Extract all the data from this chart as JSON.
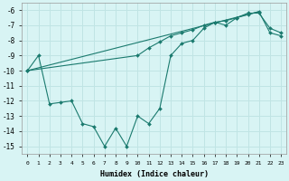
{
  "line1_x": [
    0,
    1,
    2,
    3,
    4,
    5,
    6,
    7,
    8,
    9,
    10,
    11,
    12,
    13,
    14,
    15,
    16,
    17,
    18,
    19,
    20,
    21,
    22,
    23
  ],
  "line1_y": [
    -10.0,
    -9.0,
    -12.2,
    -12.1,
    -12.0,
    -13.5,
    -13.7,
    -15.0,
    -13.8,
    -15.0,
    -13.0,
    -13.5,
    -12.5,
    -9.0,
    -8.2,
    -8.0,
    -7.2,
    -6.8,
    -7.0,
    -6.5,
    -6.2,
    -6.2,
    -7.2,
    -7.5
  ],
  "line2_x": [
    0,
    10,
    11,
    12,
    13,
    14,
    15,
    16,
    17,
    18,
    19,
    20,
    21,
    22,
    23
  ],
  "line2_y": [
    -10.0,
    -9.0,
    -8.5,
    -8.1,
    -7.7,
    -7.5,
    -7.3,
    -7.0,
    -6.8,
    -6.7,
    -6.5,
    -6.3,
    -6.1,
    -7.5,
    -7.7
  ],
  "line3_x": [
    0,
    21
  ],
  "line3_y": [
    -10.0,
    -6.1
  ],
  "color": "#1a7a6e",
  "bg_color": "#d8f4f4",
  "grid_color": "#c0e4e4",
  "xlabel": "Humidex (Indice chaleur)",
  "ylim": [
    -15.5,
    -5.5
  ],
  "xlim": [
    -0.5,
    23.5
  ],
  "yticks": [
    -6,
    -7,
    -8,
    -9,
    -10,
    -11,
    -12,
    -13,
    -14,
    -15
  ],
  "xticks": [
    0,
    1,
    2,
    3,
    4,
    5,
    6,
    7,
    8,
    9,
    10,
    11,
    12,
    13,
    14,
    15,
    16,
    17,
    18,
    19,
    20,
    21,
    22,
    23
  ]
}
